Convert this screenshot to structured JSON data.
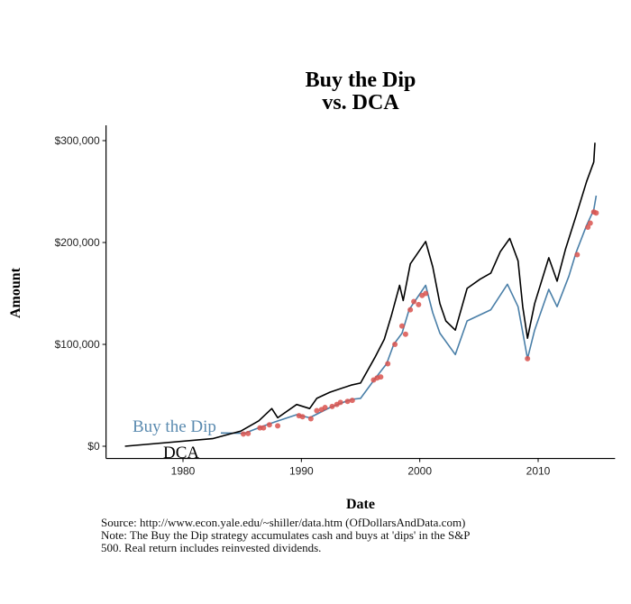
{
  "chart_data": {
    "type": "line",
    "title_lines": [
      "Buy the Dip",
      "vs. DCA"
    ],
    "xlabel": "Date",
    "ylabel": "Amount",
    "xlim": [
      1973.5,
      2016.5
    ],
    "ylim": [
      -12000,
      315000
    ],
    "x_ticks": [
      1980,
      1990,
      2000,
      2010
    ],
    "y_ticks": [
      0,
      100000,
      200000,
      300000
    ],
    "y_tick_labels": [
      "$0",
      "$100,000",
      "$200,000",
      "$300,000"
    ],
    "grid": false,
    "legend": "inline labels near lower-left",
    "series": [
      {
        "name": "DCA",
        "color": "#000000",
        "x": [
          1975.1,
          1982.5,
          1984.9,
          1986.4,
          1987.5,
          1988.0,
          1989.6,
          1990.7,
          1991.3,
          1992.4,
          1994.2,
          1995.0,
          1996.2,
          1997.0,
          1997.6,
          1998.3,
          1998.6,
          1999.2,
          2000.5,
          2001.1,
          2001.7,
          2002.2,
          2003.0,
          2004.0,
          2005.1,
          2006.0,
          2006.8,
          2007.6,
          2008.3,
          2008.7,
          2009.1,
          2009.7,
          2010.9,
          2011.6,
          2012.3,
          2013.2,
          2014.1,
          2014.7,
          2014.8
        ],
        "y": [
          0,
          7400,
          15000,
          25000,
          37000,
          28000,
          41000,
          37000,
          47000,
          53000,
          60000,
          62000,
          87000,
          105000,
          128000,
          158000,
          143000,
          179000,
          201000,
          176000,
          140000,
          123000,
          114000,
          155000,
          164000,
          170000,
          191000,
          204000,
          182000,
          137000,
          106000,
          140000,
          185000,
          162000,
          193000,
          226000,
          260000,
          279000,
          298000
        ]
      },
      {
        "name": "Buy the Dip",
        "color": "#4a7fa8",
        "x": [
          1983.2,
          1985.2,
          1986.6,
          1987.8,
          1989.6,
          1990.7,
          1992.4,
          1994.2,
          1995.0,
          1996.2,
          1997.2,
          1997.8,
          1998.5,
          1999.1,
          2000.5,
          2001.1,
          2001.7,
          2003.0,
          2004.0,
          2006.0,
          2007.4,
          2008.3,
          2009.1,
          2009.7,
          2010.9,
          2011.6,
          2012.6,
          2013.2,
          2014.1,
          2014.7,
          2014.9
        ],
        "y": [
          13000,
          12700,
          19000,
          24000,
          31000,
          28000,
          38000,
          46000,
          47000,
          66000,
          81000,
          100000,
          111000,
          134000,
          158000,
          131000,
          111000,
          90000,
          123000,
          134000,
          159000,
          137000,
          86000,
          114000,
          154000,
          137000,
          167000,
          190000,
          217000,
          232000,
          246000
        ]
      }
    ],
    "dip_points": {
      "color": "#d9534f",
      "x": [
        1985.1,
        1985.5,
        1986.5,
        1986.8,
        1987.3,
        1988.0,
        1989.8,
        1990.1,
        1990.8,
        1991.3,
        1991.7,
        1992.0,
        1992.6,
        1993.0,
        1993.3,
        1993.9,
        1994.3,
        1996.1,
        1996.4,
        1996.7,
        1997.3,
        1997.9,
        1998.5,
        1998.8,
        1999.2,
        1999.5,
        1999.9,
        2000.2,
        2000.5,
        2009.1,
        2013.3,
        2014.2,
        2014.4,
        2014.7,
        2014.9
      ],
      "y": [
        12000,
        12500,
        18000,
        18000,
        21000,
        20000,
        30000,
        29000,
        27000,
        35000,
        36000,
        38000,
        39000,
        41000,
        43000,
        44000,
        45000,
        65000,
        67000,
        68000,
        81000,
        100000,
        118000,
        110000,
        134000,
        142000,
        139000,
        148000,
        150000,
        86000,
        188000,
        215000,
        219000,
        230000,
        229000
      ]
    },
    "annotations": [
      "Buy the Dip",
      "DCA"
    ]
  },
  "notes": [
    "Source:  http://www.econ.yale.edu/~shiller/data.htm (OfDollarsAndData.com)",
    "Note: The Buy the Dip strategy accumulates cash and buys at 'dips' in the S&P",
    "500. Real return includes reinvested dividends."
  ]
}
